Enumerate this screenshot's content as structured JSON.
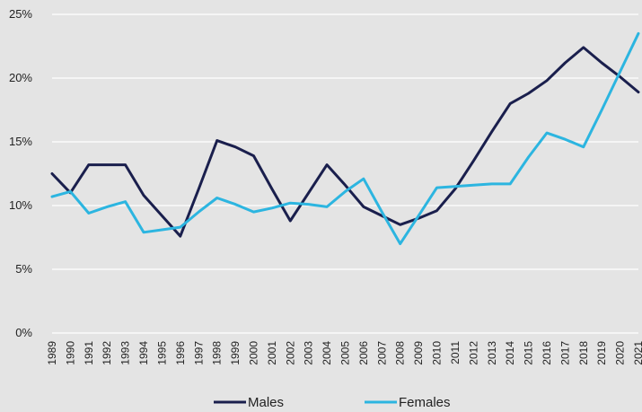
{
  "chart_data": {
    "type": "line",
    "title": "",
    "xlabel": "",
    "ylabel": "",
    "x": [
      "1989",
      "1990",
      "1991",
      "1992",
      "1993",
      "1994",
      "1995",
      "1996",
      "1997",
      "1998",
      "1999",
      "2000",
      "2001",
      "2002",
      "2003",
      "2004",
      "2005",
      "2006",
      "2007",
      "2008",
      "2009",
      "2010",
      "2011",
      "2012",
      "2013",
      "2014",
      "2015",
      "2016",
      "2017",
      "2018",
      "2019",
      "2020",
      "2021"
    ],
    "y_ticks": [
      "0%",
      "5%",
      "10%",
      "15%",
      "20%",
      "25%"
    ],
    "ylim": [
      0,
      25
    ],
    "grid": true,
    "legend_position": "bottom",
    "series": [
      {
        "name": "Males",
        "color": "#1a1f4d",
        "values": [
          12.5,
          11.0,
          13.2,
          13.2,
          13.2,
          10.8,
          9.2,
          7.6,
          11.3,
          15.1,
          14.6,
          13.9,
          11.3,
          8.8,
          11.0,
          13.2,
          11.6,
          9.9,
          9.2,
          8.5,
          9.0,
          9.6,
          11.3,
          13.5,
          15.8,
          18.0,
          18.8,
          19.8,
          21.2,
          22.4,
          21.2,
          20.1,
          18.9
        ]
      },
      {
        "name": "Females",
        "color": "#2cb5e0",
        "values": [
          10.7,
          11.1,
          9.4,
          9.9,
          10.3,
          7.9,
          8.1,
          8.3,
          9.5,
          10.6,
          10.1,
          9.5,
          9.8,
          10.2,
          10.1,
          9.9,
          11.1,
          12.1,
          9.5,
          7.0,
          9.2,
          11.4,
          11.5,
          11.6,
          11.7,
          11.7,
          13.8,
          15.7,
          15.2,
          14.6,
          17.5,
          20.5,
          23.5
        ]
      }
    ]
  }
}
